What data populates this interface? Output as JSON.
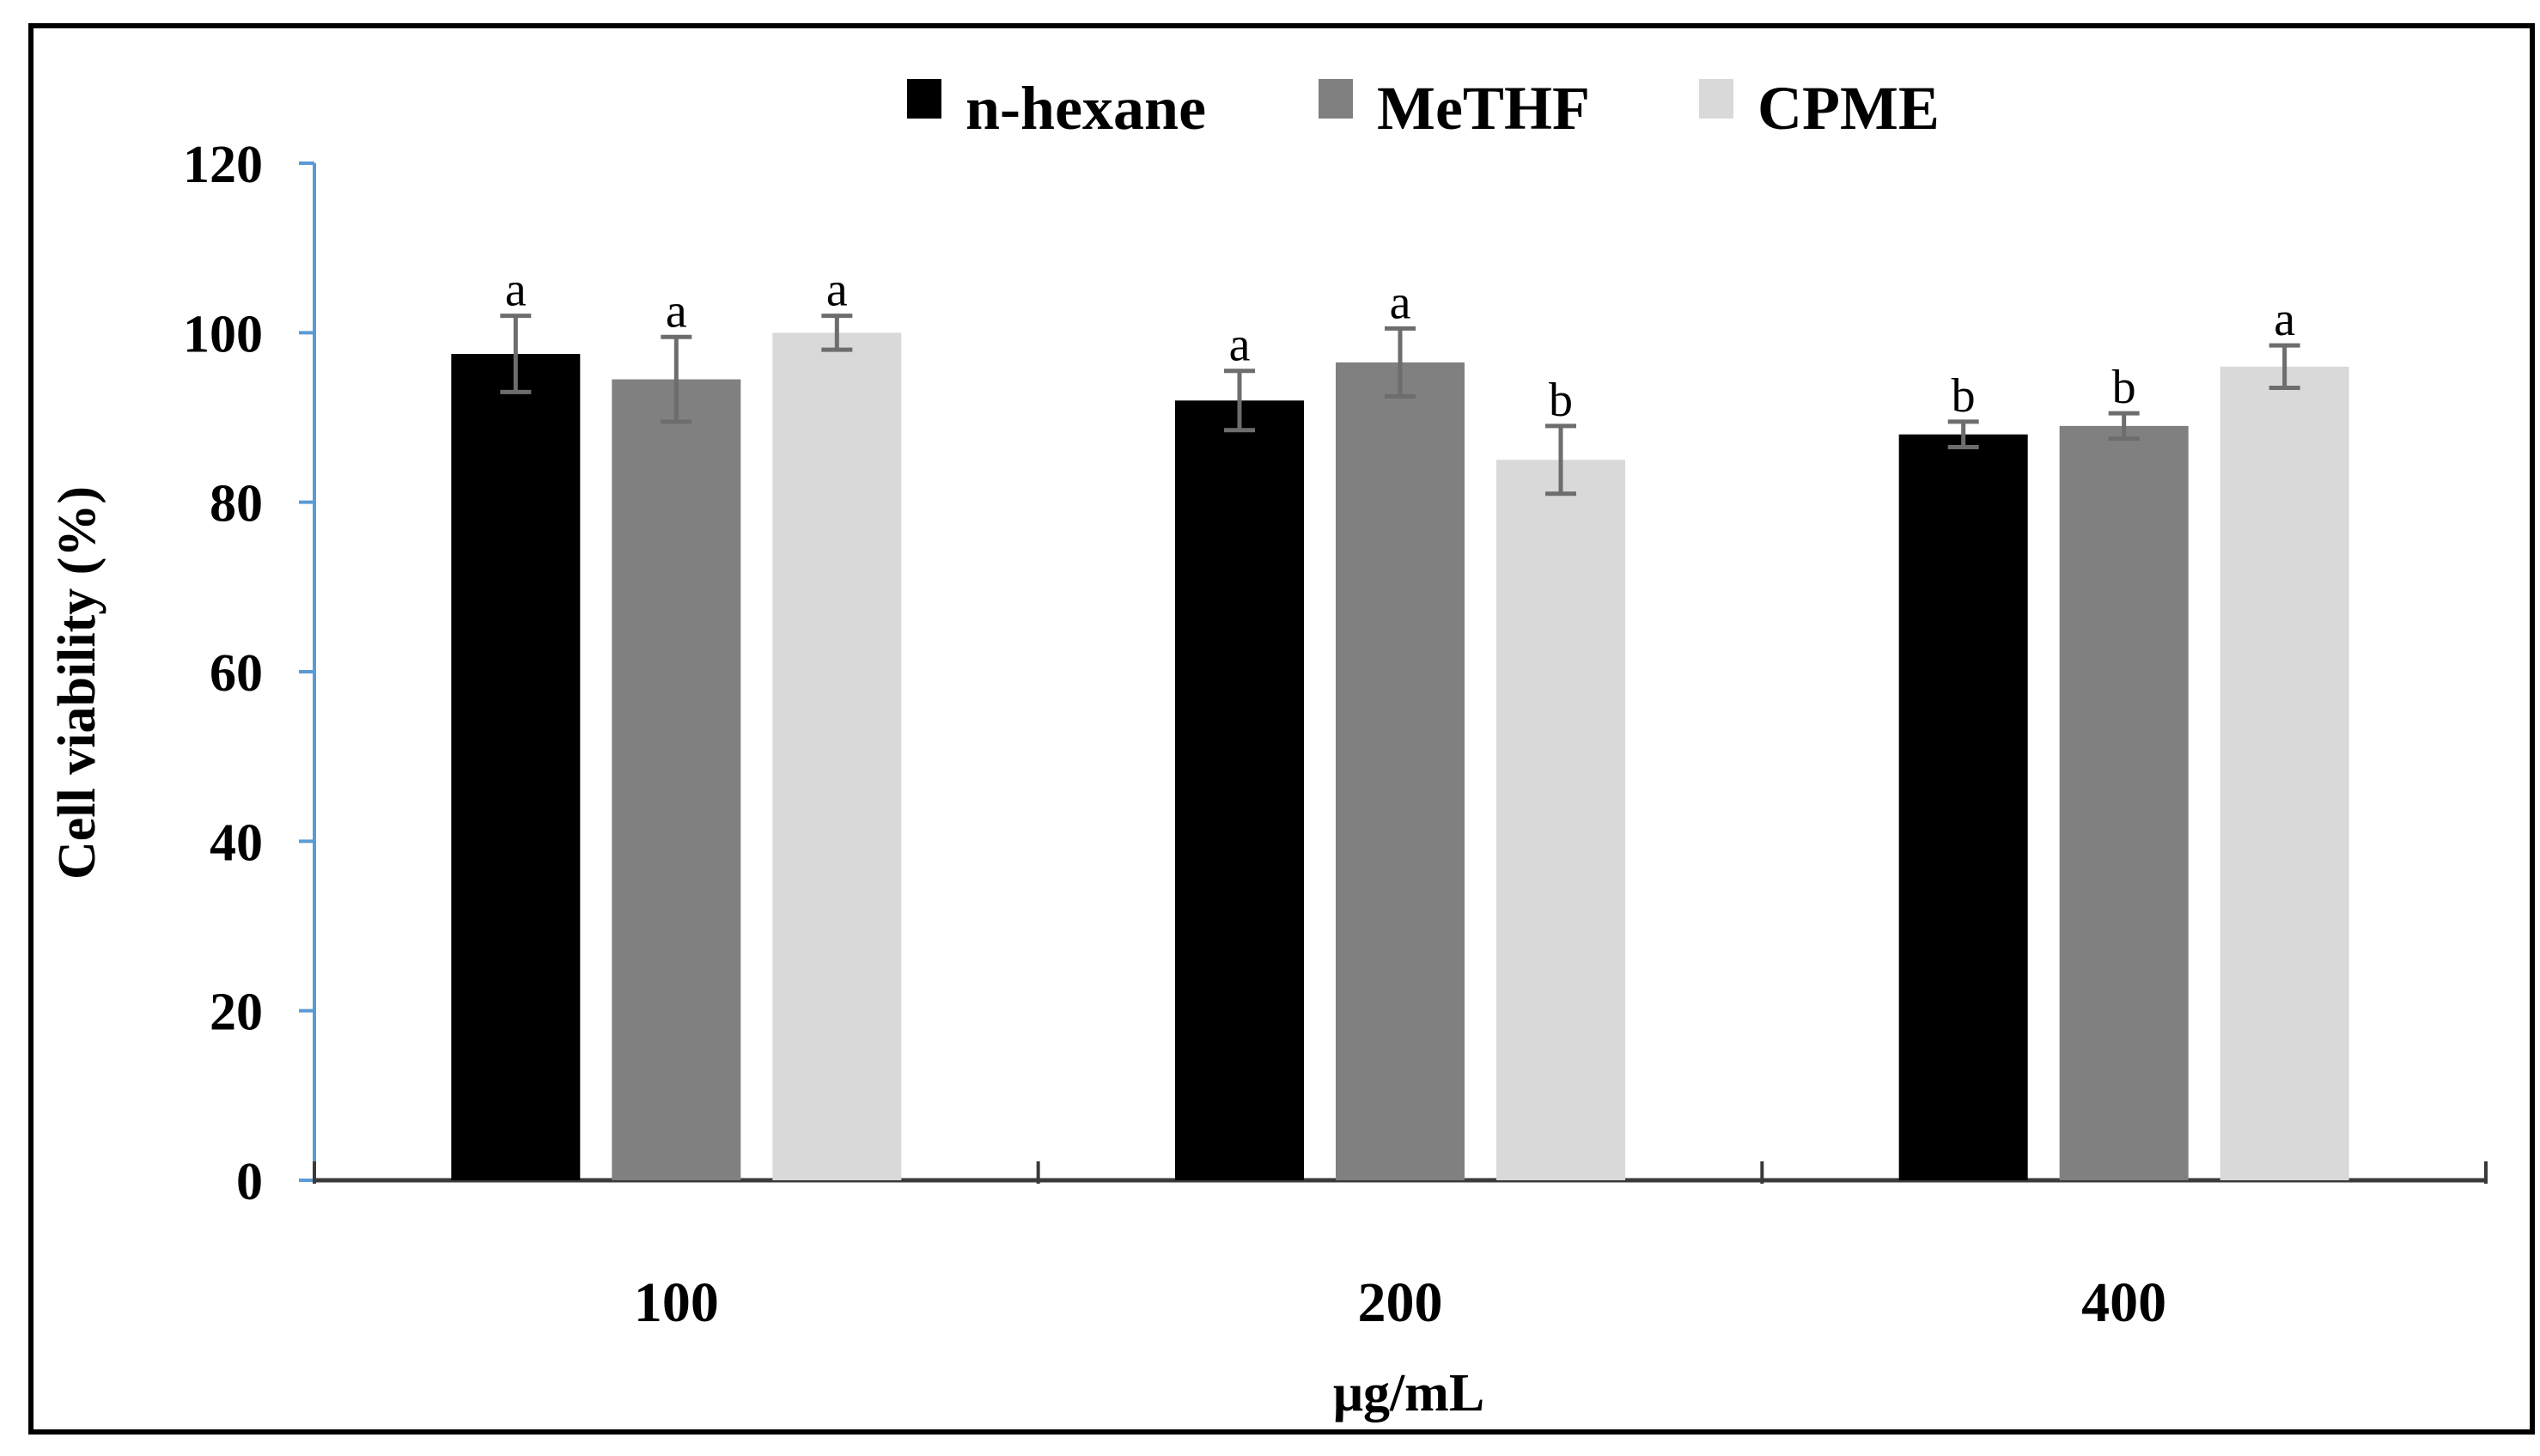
{
  "chart_data": {
    "type": "bar",
    "title": "",
    "xlabel": "μg/mL",
    "ylabel": "Cell viability (%)",
    "ylim": [
      0,
      120
    ],
    "yticks": [
      0,
      20,
      40,
      60,
      80,
      100,
      120
    ],
    "categories": [
      "100",
      "200",
      "400"
    ],
    "legend_position": "top-center",
    "grid": false,
    "series": [
      {
        "name": "n-hexane",
        "color": "#000000",
        "values": [
          97.5,
          92,
          88
        ],
        "errors": [
          4.5,
          3.5,
          1.5
        ],
        "letters": [
          "a",
          "a",
          "b"
        ]
      },
      {
        "name": "MeTHF",
        "color": "#808080",
        "values": [
          94.5,
          96.5,
          89
        ],
        "errors": [
          5,
          4,
          1.5
        ],
        "letters": [
          "a",
          "a",
          "b"
        ]
      },
      {
        "name": "CPME",
        "color": "#d9d9d9",
        "values": [
          100,
          85,
          96
        ],
        "errors": [
          2,
          4,
          2.5
        ],
        "letters": [
          "a",
          "b",
          "a"
        ]
      }
    ]
  }
}
